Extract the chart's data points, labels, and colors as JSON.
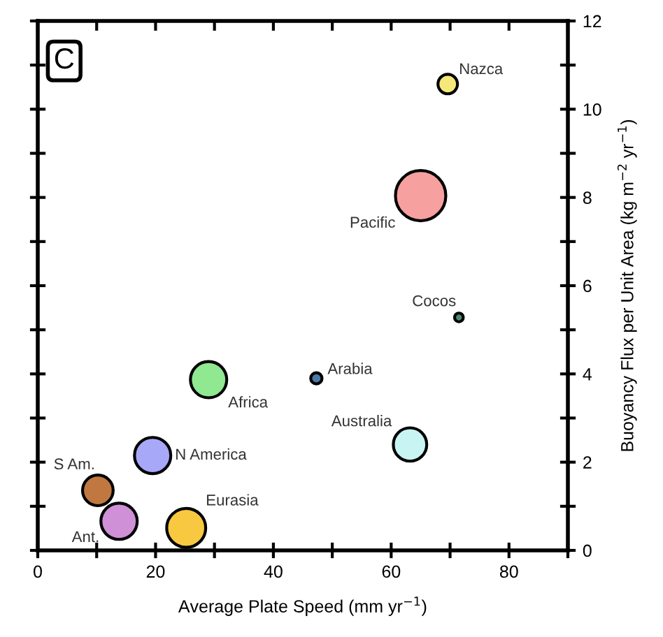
{
  "chart_data": {
    "type": "bubble",
    "xlabel": "Average Plate Speed (mm yr$^{−1}$)",
    "ylabel": "Buoyancy Flux per Unit Area (kg m$^{−2}$ yr$^{−1}$)",
    "annotations": [
      "C"
    ],
    "xlim": [
      0,
      90
    ],
    "xticks": [
      0,
      {
        "value": 10,
        "label": null
      },
      20,
      {
        "value": 30,
        "label": null
      },
      40,
      {
        "value": 50,
        "label": null
      },
      60,
      {
        "value": 70,
        "label": null
      },
      80,
      {
        "value": 90,
        "label": null
      }
    ],
    "ylim": [
      0,
      12
    ],
    "yticks": [
      0,
      {
        "value": 1,
        "label": null
      },
      2,
      {
        "value": 3,
        "label": null
      },
      4,
      {
        "value": 5,
        "label": null
      },
      6,
      {
        "value": 7,
        "label": null
      },
      8,
      {
        "value": 9,
        "label": null
      },
      10,
      {
        "value": 11,
        "label": null
      },
      12
    ],
    "grid": false,
    "marker": "circle",
    "series": [
      {
        "name": "Nazca",
        "color": "#f5e87a",
        "x": [
          69.6
        ],
        "values": [
          10.57
        ],
        "sizes": [
          0.15
        ]
      },
      {
        "name": "Pacific",
        "color": "#f7a0a0",
        "x": [
          65
        ],
        "values": [
          8.04
        ],
        "sizes": [
          1
        ]
      },
      {
        "name": "Cocos",
        "color": "#4a8a70",
        "x": [
          71.5
        ],
        "values": [
          5.28
        ],
        "sizes": [
          0.03
        ]
      },
      {
        "name": "Arabia",
        "color": "#4a7aa8",
        "x": [
          47.3
        ],
        "values": [
          3.9
        ],
        "sizes": [
          0.05
        ]
      },
      {
        "name": "Africa",
        "color": "#90e890",
        "x": [
          29
        ],
        "values": [
          3.87
        ],
        "sizes": [
          0.52
        ]
      },
      {
        "name": "Australia",
        "color": "#c8f4f4",
        "x": [
          63.2
        ],
        "values": [
          2.4
        ],
        "sizes": [
          0.44
        ]
      },
      {
        "name": "N America",
        "color": "#a8a8f8",
        "x": [
          19.5
        ],
        "values": [
          2.15
        ],
        "sizes": [
          0.52
        ]
      },
      {
        "name": "S Am.",
        "color": "#c07840",
        "x": [
          10.2
        ],
        "values": [
          1.36
        ],
        "sizes": [
          0.37
        ]
      },
      {
        "name": "Ant.",
        "color": "#d090d8",
        "x": [
          13.8
        ],
        "values": [
          0.66
        ],
        "sizes": [
          0.52
        ]
      },
      {
        "name": "Eurasia",
        "color": "#f8c840",
        "x": [
          25.2
        ],
        "values": [
          0.51
        ],
        "sizes": [
          0.6
        ]
      }
    ]
  }
}
